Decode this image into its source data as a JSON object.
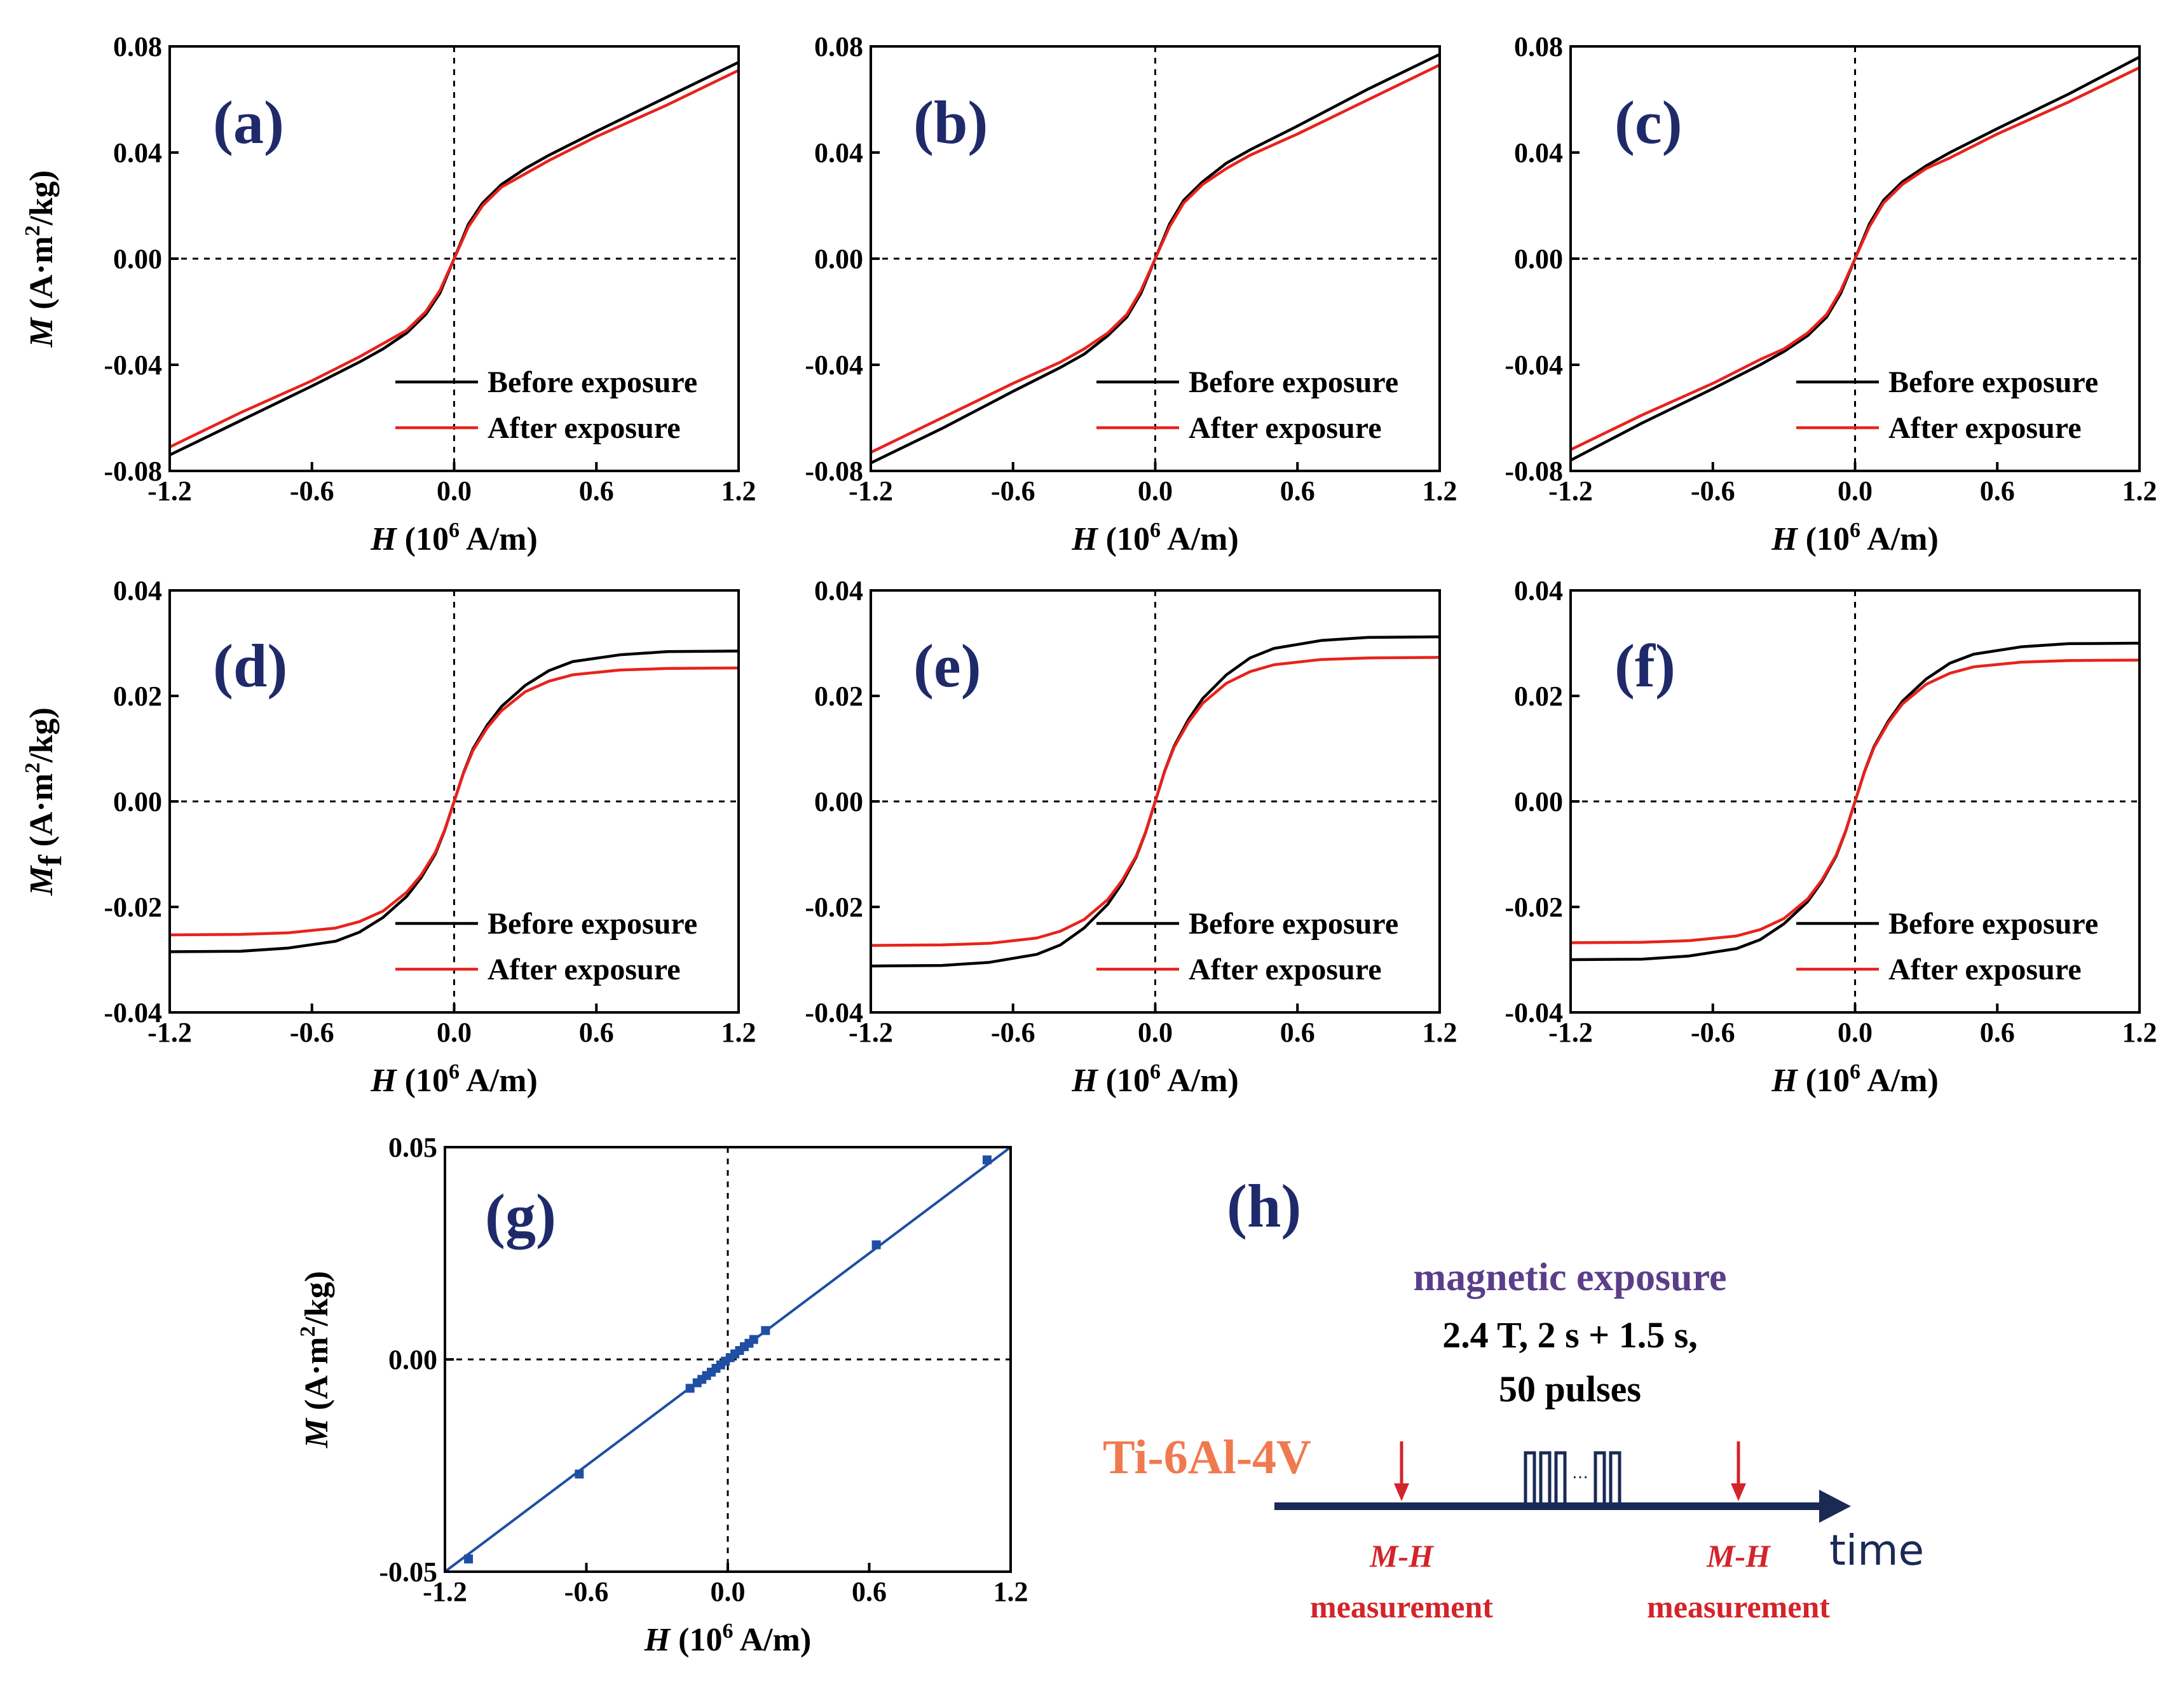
{
  "colors": {
    "before": "#000000",
    "after": "#e8221c",
    "linear": "#1f4fa3",
    "tag": "#1f2a6b",
    "arrow": "#1a2a55"
  },
  "x_axis_label": {
    "italic": "H",
    "pre": " (10",
    "sup": "6",
    "post": " A/m)"
  },
  "chart_data": [
    {
      "panel": "(a)",
      "type": "line",
      "ylabel": {
        "italic": "M",
        "pre": " (A·m",
        "sup": "2",
        "post": "/kg)"
      },
      "xlim": [
        -1.2,
        1.2
      ],
      "ylim": [
        -0.08,
        0.08
      ],
      "xticks": [
        "-1.2",
        "-0.6",
        "0.0",
        "0.6",
        "1.2"
      ],
      "yticks": [
        "-0.08",
        "-0.04",
        "0.00",
        "0.04",
        "0.08"
      ],
      "legend": [
        "Before exposure",
        "After exposure"
      ],
      "series": [
        {
          "name": "Before exposure",
          "x": [
            -1.2,
            -0.9,
            -0.6,
            -0.4,
            -0.3,
            -0.2,
            -0.12,
            -0.06,
            0,
            0.06,
            0.12,
            0.2,
            0.3,
            0.4,
            0.6,
            0.9,
            1.2
          ],
          "y": [
            -0.074,
            -0.061,
            -0.048,
            -0.039,
            -0.034,
            -0.028,
            -0.021,
            -0.013,
            0,
            0.013,
            0.021,
            0.028,
            0.034,
            0.039,
            0.048,
            0.061,
            0.074
          ]
        },
        {
          "name": "After exposure",
          "x": [
            -1.2,
            -0.9,
            -0.6,
            -0.4,
            -0.3,
            -0.2,
            -0.12,
            -0.06,
            0,
            0.06,
            0.12,
            0.2,
            0.3,
            0.4,
            0.6,
            0.9,
            1.2
          ],
          "y": [
            -0.071,
            -0.058,
            -0.046,
            -0.037,
            -0.032,
            -0.027,
            -0.02,
            -0.012,
            0,
            0.012,
            0.02,
            0.027,
            0.032,
            0.037,
            0.046,
            0.058,
            0.071
          ]
        }
      ]
    },
    {
      "panel": "(b)",
      "type": "line",
      "xlim": [
        -1.2,
        1.2
      ],
      "ylim": [
        -0.08,
        0.08
      ],
      "xticks": [
        "-1.2",
        "-0.6",
        "0.0",
        "0.6",
        "1.2"
      ],
      "yticks": [
        "-0.08",
        "-0.04",
        "0.00",
        "0.04",
        "0.08"
      ],
      "legend": [
        "Before exposure",
        "After exposure"
      ],
      "series": [
        {
          "name": "Before exposure",
          "x": [
            -1.2,
            -0.9,
            -0.6,
            -0.4,
            -0.3,
            -0.2,
            -0.12,
            -0.06,
            0,
            0.06,
            0.12,
            0.2,
            0.3,
            0.4,
            0.6,
            0.9,
            1.2
          ],
          "y": [
            -0.077,
            -0.064,
            -0.05,
            -0.041,
            -0.036,
            -0.029,
            -0.022,
            -0.013,
            0,
            0.013,
            0.022,
            0.029,
            0.036,
            0.041,
            0.05,
            0.064,
            0.077
          ]
        },
        {
          "name": "After exposure",
          "x": [
            -1.2,
            -0.9,
            -0.6,
            -0.4,
            -0.3,
            -0.2,
            -0.12,
            -0.06,
            0,
            0.06,
            0.12,
            0.2,
            0.3,
            0.4,
            0.6,
            0.9,
            1.2
          ],
          "y": [
            -0.073,
            -0.06,
            -0.047,
            -0.039,
            -0.034,
            -0.028,
            -0.021,
            -0.012,
            0,
            0.012,
            0.021,
            0.028,
            0.034,
            0.039,
            0.047,
            0.06,
            0.073
          ]
        }
      ]
    },
    {
      "panel": "(c)",
      "type": "line",
      "xlim": [
        -1.2,
        1.2
      ],
      "ylim": [
        -0.08,
        0.08
      ],
      "xticks": [
        "-1.2",
        "-0.6",
        "0.0",
        "0.6",
        "1.2"
      ],
      "yticks": [
        "-0.08",
        "-0.04",
        "0.00",
        "0.04",
        "0.08"
      ],
      "legend": [
        "Before exposure",
        "After exposure"
      ],
      "series": [
        {
          "name": "Before exposure",
          "x": [
            -1.2,
            -0.9,
            -0.6,
            -0.4,
            -0.3,
            -0.2,
            -0.12,
            -0.06,
            0,
            0.06,
            0.12,
            0.2,
            0.3,
            0.4,
            0.6,
            0.9,
            1.2
          ],
          "y": [
            -0.076,
            -0.062,
            -0.049,
            -0.04,
            -0.035,
            -0.029,
            -0.022,
            -0.013,
            0,
            0.013,
            0.022,
            0.029,
            0.035,
            0.04,
            0.049,
            0.062,
            0.076
          ]
        },
        {
          "name": "After exposure",
          "x": [
            -1.2,
            -0.9,
            -0.6,
            -0.4,
            -0.3,
            -0.2,
            -0.12,
            -0.06,
            0,
            0.06,
            0.12,
            0.2,
            0.3,
            0.4,
            0.6,
            0.9,
            1.2
          ],
          "y": [
            -0.072,
            -0.059,
            -0.047,
            -0.038,
            -0.034,
            -0.028,
            -0.021,
            -0.012,
            0,
            0.012,
            0.021,
            0.028,
            0.034,
            0.038,
            0.047,
            0.059,
            0.072
          ]
        }
      ]
    },
    {
      "panel": "(d)",
      "type": "line",
      "ylabel": {
        "italic": "M",
        "sub": "f",
        "pre": " (A·m",
        "sup": "2",
        "post": "/kg)"
      },
      "xlim": [
        -1.2,
        1.2
      ],
      "ylim": [
        -0.04,
        0.04
      ],
      "xticks": [
        "-1.2",
        "-0.6",
        "0.0",
        "0.6",
        "1.2"
      ],
      "yticks": [
        "-0.04",
        "-0.02",
        "0.00",
        "0.02",
        "0.04"
      ],
      "legend": [
        "Before exposure",
        "After exposure"
      ],
      "series": [
        {
          "name": "Before exposure",
          "x": [
            -1.2,
            -0.9,
            -0.7,
            -0.5,
            -0.4,
            -0.3,
            -0.2,
            -0.14,
            -0.08,
            -0.04,
            0,
            0.04,
            0.08,
            0.14,
            0.2,
            0.3,
            0.4,
            0.5,
            0.7,
            0.9,
            1.2
          ],
          "y": [
            -0.0285,
            -0.0284,
            -0.0278,
            -0.0265,
            -0.0248,
            -0.022,
            -0.018,
            -0.0145,
            -0.01,
            -0.0055,
            0,
            0.0055,
            0.01,
            0.0145,
            0.018,
            0.022,
            0.0248,
            0.0265,
            0.0278,
            0.0284,
            0.0285
          ]
        },
        {
          "name": "After exposure",
          "x": [
            -1.2,
            -0.9,
            -0.7,
            -0.5,
            -0.4,
            -0.3,
            -0.2,
            -0.14,
            -0.08,
            -0.04,
            0,
            0.04,
            0.08,
            0.14,
            0.2,
            0.3,
            0.4,
            0.5,
            0.7,
            0.9,
            1.2
          ],
          "y": [
            -0.0253,
            -0.0252,
            -0.0249,
            -0.024,
            -0.0228,
            -0.0208,
            -0.0172,
            -0.014,
            -0.0097,
            -0.0054,
            0,
            0.0054,
            0.0097,
            0.014,
            0.0172,
            0.0208,
            0.0228,
            0.024,
            0.0249,
            0.0252,
            0.0253
          ]
        }
      ]
    },
    {
      "panel": "(e)",
      "type": "line",
      "xlim": [
        -1.2,
        1.2
      ],
      "ylim": [
        -0.04,
        0.04
      ],
      "xticks": [
        "-1.2",
        "-0.6",
        "0.0",
        "0.6",
        "1.2"
      ],
      "yticks": [
        "-0.04",
        "-0.02",
        "0.00",
        "0.02",
        "0.04"
      ],
      "legend": [
        "Before exposure",
        "After exposure"
      ],
      "series": [
        {
          "name": "Before exposure",
          "x": [
            -1.2,
            -0.9,
            -0.7,
            -0.5,
            -0.4,
            -0.3,
            -0.2,
            -0.14,
            -0.08,
            -0.04,
            0,
            0.04,
            0.08,
            0.14,
            0.2,
            0.3,
            0.4,
            0.5,
            0.7,
            0.9,
            1.2
          ],
          "y": [
            -0.0312,
            -0.0311,
            -0.0305,
            -0.029,
            -0.0272,
            -0.024,
            -0.0195,
            -0.0155,
            -0.0105,
            -0.0058,
            0,
            0.0058,
            0.0105,
            0.0155,
            0.0195,
            0.024,
            0.0272,
            0.029,
            0.0305,
            0.0311,
            0.0312
          ]
        },
        {
          "name": "After exposure",
          "x": [
            -1.2,
            -0.9,
            -0.7,
            -0.5,
            -0.4,
            -0.3,
            -0.2,
            -0.14,
            -0.08,
            -0.04,
            0,
            0.04,
            0.08,
            0.14,
            0.2,
            0.3,
            0.4,
            0.5,
            0.7,
            0.9,
            1.2
          ],
          "y": [
            -0.0273,
            -0.0272,
            -0.0269,
            -0.0259,
            -0.0246,
            -0.0224,
            -0.0186,
            -0.015,
            -0.0103,
            -0.0057,
            0,
            0.0057,
            0.0103,
            0.015,
            0.0186,
            0.0224,
            0.0246,
            0.0259,
            0.0269,
            0.0272,
            0.0273
          ]
        }
      ]
    },
    {
      "panel": "(f)",
      "type": "line",
      "xlim": [
        -1.2,
        1.2
      ],
      "ylim": [
        -0.04,
        0.04
      ],
      "xticks": [
        "-1.2",
        "-0.6",
        "0.0",
        "0.6",
        "1.2"
      ],
      "yticks": [
        "-0.04",
        "-0.02",
        "0.00",
        "0.02",
        "0.04"
      ],
      "legend": [
        "Before exposure",
        "After exposure"
      ],
      "series": [
        {
          "name": "Before exposure",
          "x": [
            -1.2,
            -0.9,
            -0.7,
            -0.5,
            -0.4,
            -0.3,
            -0.2,
            -0.14,
            -0.08,
            -0.04,
            0,
            0.04,
            0.08,
            0.14,
            0.2,
            0.3,
            0.4,
            0.5,
            0.7,
            0.9,
            1.2
          ],
          "y": [
            -0.03,
            -0.0299,
            -0.0293,
            -0.0279,
            -0.0262,
            -0.0232,
            -0.019,
            -0.0152,
            -0.0104,
            -0.0057,
            0,
            0.0057,
            0.0104,
            0.0152,
            0.019,
            0.0232,
            0.0262,
            0.0279,
            0.0293,
            0.0299,
            0.03
          ]
        },
        {
          "name": "After exposure",
          "x": [
            -1.2,
            -0.9,
            -0.7,
            -0.5,
            -0.4,
            -0.3,
            -0.2,
            -0.14,
            -0.08,
            -0.04,
            0,
            0.04,
            0.08,
            0.14,
            0.2,
            0.3,
            0.4,
            0.5,
            0.7,
            0.9,
            1.2
          ],
          "y": [
            -0.0268,
            -0.0267,
            -0.0264,
            -0.0255,
            -0.0243,
            -0.0222,
            -0.0185,
            -0.0149,
            -0.0102,
            -0.0056,
            0,
            0.0056,
            0.0102,
            0.0149,
            0.0185,
            0.0222,
            0.0243,
            0.0255,
            0.0264,
            0.0267,
            0.0268
          ]
        }
      ]
    },
    {
      "panel": "(g)",
      "type": "scatter",
      "ylabel": {
        "italic": "M",
        "pre": " (A·m",
        "sup": "2",
        "post": "/kg)"
      },
      "xlim": [
        -1.2,
        1.2
      ],
      "ylim": [
        -0.05,
        0.05
      ],
      "xticks": [
        "-1.2",
        "-0.6",
        "0.0",
        "0.6",
        "1.2"
      ],
      "yticks": [
        "-0.05",
        "0.00",
        "0.05"
      ],
      "series": [
        {
          "x": [
            -1.1,
            -0.63,
            -0.16,
            -0.13,
            -0.11,
            -0.09,
            -0.07,
            -0.05,
            -0.03,
            -0.01,
            0.01,
            0.03,
            0.05,
            0.07,
            0.09,
            0.11,
            0.16,
            0.63,
            1.1
          ],
          "y": [
            -0.047,
            -0.027,
            -0.0068,
            -0.0055,
            -0.0047,
            -0.0038,
            -0.003,
            -0.0021,
            -0.0013,
            -0.0004,
            0.0004,
            0.0013,
            0.0021,
            0.003,
            0.0038,
            0.0047,
            0.0068,
            0.027,
            0.047
          ]
        }
      ]
    }
  ],
  "diagram": {
    "panel": "(h)",
    "title": "magnetic exposure",
    "param_line1": "2.4 T, 2 s + 1.5 s,",
    "param_line2": "50 pulses",
    "sample": "Ti-6Al-4V",
    "meas_label_italic": "M-H",
    "meas_label": "measurement",
    "ellipsis": "…",
    "axis_label": "time"
  }
}
